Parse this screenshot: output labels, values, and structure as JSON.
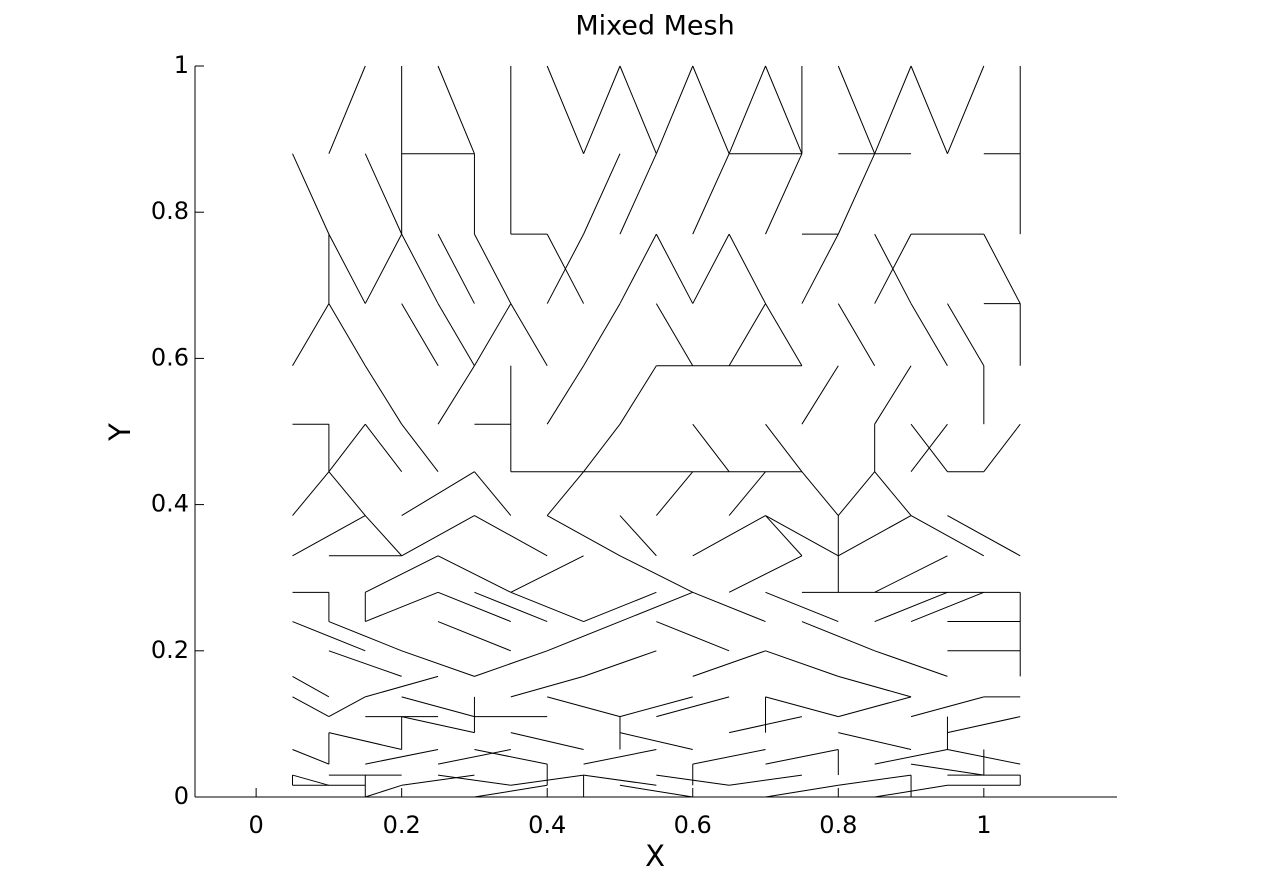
{
  "chart_data": {
    "type": "mesh",
    "title": "Mixed Mesh",
    "x_label": "X",
    "y_label": "Y",
    "color": "#000000",
    "xlim": [
      -0.084,
      1.183
    ],
    "ylim": [
      0,
      1
    ],
    "xticks": [
      0,
      0.2,
      0.4,
      0.6,
      0.8,
      1
    ],
    "yticks": [
      0,
      0.2,
      0.4,
      0.6,
      0.8,
      1
    ],
    "segments": [
      [
        0.05,
        0.016,
        0.15,
        0.016
      ],
      [
        0.1,
        0.03,
        0.2,
        0.03
      ],
      [
        0.05,
        0.03,
        0.1,
        0.016
      ],
      [
        0.15,
        0,
        0.2,
        0.016
      ],
      [
        0.2,
        0.016,
        0.3,
        0.03
      ],
      [
        0.25,
        0.03,
        0.35,
        0.016
      ],
      [
        0.35,
        0.016,
        0.45,
        0.03
      ],
      [
        0.3,
        0,
        0.4,
        0.016
      ],
      [
        0.45,
        0.03,
        0.55,
        0.016
      ],
      [
        0.5,
        0.016,
        0.6,
        0
      ],
      [
        0.55,
        0.03,
        0.65,
        0.016
      ],
      [
        0.65,
        0.016,
        0.75,
        0.03
      ],
      [
        0.7,
        0,
        0.8,
        0.016
      ],
      [
        0.8,
        0.016,
        0.9,
        0.03
      ],
      [
        0.85,
        0,
        0.95,
        0.016
      ],
      [
        0.95,
        0.016,
        1.05,
        0.016
      ],
      [
        0.95,
        0.03,
        1.05,
        0.03
      ],
      [
        0.9,
        0.045,
        1.0,
        0.03
      ],
      [
        0.05,
        0.065,
        0.1,
        0.045
      ],
      [
        0.1,
        0.088,
        0.2,
        0.065
      ],
      [
        0.15,
        0.045,
        0.25,
        0.065
      ],
      [
        0.2,
        0.11,
        0.3,
        0.088
      ],
      [
        0.25,
        0.045,
        0.35,
        0.065
      ],
      [
        0.3,
        0.065,
        0.4,
        0.045
      ],
      [
        0.35,
        0.088,
        0.45,
        0.065
      ],
      [
        0.45,
        0.045,
        0.55,
        0.065
      ],
      [
        0.5,
        0.088,
        0.6,
        0.065
      ],
      [
        0.6,
        0.045,
        0.7,
        0.065
      ],
      [
        0.65,
        0.088,
        0.75,
        0.11
      ],
      [
        0.7,
        0.045,
        0.8,
        0.065
      ],
      [
        0.8,
        0.088,
        0.9,
        0.065
      ],
      [
        0.85,
        0.045,
        0.95,
        0.065
      ],
      [
        0.95,
        0.065,
        1.05,
        0.045
      ],
      [
        0.95,
        0.088,
        1.05,
        0.11
      ],
      [
        0.05,
        0.137,
        0.1,
        0.11
      ],
      [
        0.1,
        0.11,
        0.15,
        0.137
      ],
      [
        0.15,
        0.11,
        0.25,
        0.11
      ],
      [
        0.2,
        0.137,
        0.3,
        0.11
      ],
      [
        0.3,
        0.11,
        0.4,
        0.11
      ],
      [
        0.4,
        0.137,
        0.5,
        0.11
      ],
      [
        0.5,
        0.11,
        0.6,
        0.137
      ],
      [
        0.55,
        0.11,
        0.65,
        0.137
      ],
      [
        0.7,
        0.137,
        0.8,
        0.11
      ],
      [
        0.8,
        0.11,
        0.9,
        0.137
      ],
      [
        0.9,
        0.11,
        1.0,
        0.137
      ],
      [
        1.0,
        0.137,
        1.05,
        0.137
      ],
      [
        0.05,
        0.016,
        0.05,
        0.03
      ],
      [
        0.1,
        0.045,
        0.1,
        0.088
      ],
      [
        0.15,
        0,
        0.15,
        0.03
      ],
      [
        0.2,
        0.065,
        0.2,
        0.11
      ],
      [
        0.3,
        0.088,
        0.3,
        0.137
      ],
      [
        0.4,
        0.016,
        0.4,
        0.045
      ],
      [
        0.45,
        0,
        0.45,
        0.03
      ],
      [
        0.5,
        0.065,
        0.5,
        0.11
      ],
      [
        0.6,
        0.016,
        0.6,
        0.045
      ],
      [
        0.7,
        0.088,
        0.7,
        0.137
      ],
      [
        0.8,
        0.03,
        0.8,
        0.065
      ],
      [
        0.9,
        0,
        0.9,
        0.03
      ],
      [
        0.95,
        0.065,
        0.95,
        0.11
      ],
      [
        1.0,
        0.03,
        1.0,
        0.065
      ],
      [
        1.05,
        0.016,
        1.05,
        0.03
      ],
      [
        0.05,
        0.165,
        0.1,
        0.137
      ],
      [
        0.1,
        0.2,
        0.2,
        0.165
      ],
      [
        0.15,
        0.137,
        0.25,
        0.165
      ],
      [
        0.2,
        0.2,
        0.3,
        0.165
      ],
      [
        0.25,
        0.24,
        0.35,
        0.2
      ],
      [
        0.3,
        0.165,
        0.4,
        0.2
      ],
      [
        0.35,
        0.137,
        0.45,
        0.165
      ],
      [
        0.4,
        0.2,
        0.5,
        0.24
      ],
      [
        0.45,
        0.165,
        0.55,
        0.2
      ],
      [
        0.55,
        0.24,
        0.65,
        0.2
      ],
      [
        0.6,
        0.165,
        0.7,
        0.2
      ],
      [
        0.7,
        0.2,
        0.8,
        0.165
      ],
      [
        0.75,
        0.24,
        0.85,
        0.2
      ],
      [
        0.8,
        0.165,
        0.9,
        0.137
      ],
      [
        0.85,
        0.2,
        0.95,
        0.165
      ],
      [
        0.95,
        0.2,
        1.05,
        0.2
      ],
      [
        0.95,
        0.24,
        1.05,
        0.24
      ],
      [
        0.05,
        0.24,
        0.15,
        0.2
      ],
      [
        0.05,
        0.28,
        0.1,
        0.28
      ],
      [
        0.1,
        0.28,
        0.1,
        0.24
      ],
      [
        0.1,
        0.24,
        0.2,
        0.2
      ],
      [
        0.15,
        0.24,
        0.25,
        0.28
      ],
      [
        0.15,
        0.24,
        0.15,
        0.28
      ],
      [
        0.25,
        0.28,
        0.35,
        0.24
      ],
      [
        0.3,
        0.28,
        0.4,
        0.24
      ],
      [
        0.35,
        0.28,
        0.45,
        0.24
      ],
      [
        0.45,
        0.24,
        0.55,
        0.28
      ],
      [
        0.5,
        0.24,
        0.6,
        0.28
      ],
      [
        0.6,
        0.28,
        0.7,
        0.24
      ],
      [
        0.7,
        0.28,
        0.8,
        0.24
      ],
      [
        0.75,
        0.28,
        1.05,
        0.28
      ],
      [
        0.85,
        0.24,
        0.95,
        0.28
      ],
      [
        0.9,
        0.24,
        1.0,
        0.28
      ],
      [
        1.05,
        0.28,
        1.05,
        0.165
      ],
      [
        0.05,
        0.33,
        0.15,
        0.385
      ],
      [
        0.1,
        0.33,
        0.2,
        0.33
      ],
      [
        0.15,
        0.28,
        0.25,
        0.33
      ],
      [
        0.2,
        0.33,
        0.3,
        0.385
      ],
      [
        0.25,
        0.33,
        0.35,
        0.28
      ],
      [
        0.3,
        0.385,
        0.4,
        0.33
      ],
      [
        0.35,
        0.28,
        0.45,
        0.33
      ],
      [
        0.4,
        0.385,
        0.5,
        0.33
      ],
      [
        0.5,
        0.33,
        0.6,
        0.28
      ],
      [
        0.6,
        0.33,
        0.7,
        0.385
      ],
      [
        0.65,
        0.28,
        0.75,
        0.33
      ],
      [
        0.7,
        0.385,
        0.8,
        0.33
      ],
      [
        0.8,
        0.28,
        0.8,
        0.385
      ],
      [
        0.8,
        0.33,
        0.9,
        0.385
      ],
      [
        0.85,
        0.28,
        0.95,
        0.33
      ],
      [
        0.9,
        0.385,
        1.0,
        0.33
      ],
      [
        0.95,
        0.385,
        1.05,
        0.33
      ],
      [
        0.05,
        0.385,
        0.1,
        0.445
      ],
      [
        0.1,
        0.445,
        0.15,
        0.385
      ],
      [
        0.15,
        0.385,
        0.2,
        0.33
      ],
      [
        0.2,
        0.385,
        0.3,
        0.445
      ],
      [
        0.3,
        0.445,
        0.35,
        0.385
      ],
      [
        0.35,
        0.445,
        0.75,
        0.445
      ],
      [
        0.4,
        0.385,
        0.45,
        0.445
      ],
      [
        0.5,
        0.385,
        0.55,
        0.33
      ],
      [
        0.55,
        0.385,
        0.6,
        0.445
      ],
      [
        0.65,
        0.385,
        0.7,
        0.445
      ],
      [
        0.7,
        0.385,
        0.75,
        0.33
      ],
      [
        0.75,
        0.445,
        0.8,
        0.385
      ],
      [
        0.8,
        0.385,
        0.85,
        0.445
      ],
      [
        0.85,
        0.445,
        0.9,
        0.385
      ],
      [
        0.9,
        0.445,
        0.95,
        0.51
      ],
      [
        1.0,
        0.445,
        1.05,
        0.51
      ],
      [
        0.05,
        0.51,
        0.1,
        0.51
      ],
      [
        0.1,
        0.445,
        0.1,
        0.51
      ],
      [
        0.1,
        0.445,
        0.15,
        0.51
      ],
      [
        0.15,
        0.51,
        0.2,
        0.445
      ],
      [
        0.2,
        0.51,
        0.25,
        0.445
      ],
      [
        0.25,
        0.51,
        0.3,
        0.59
      ],
      [
        0.3,
        0.51,
        0.35,
        0.51
      ],
      [
        0.35,
        0.59,
        0.35,
        0.445
      ],
      [
        0.4,
        0.51,
        0.45,
        0.59
      ],
      [
        0.45,
        0.445,
        0.5,
        0.51
      ],
      [
        0.5,
        0.51,
        0.55,
        0.59
      ],
      [
        0.55,
        0.59,
        0.75,
        0.59
      ],
      [
        0.6,
        0.51,
        0.65,
        0.445
      ],
      [
        0.7,
        0.51,
        0.75,
        0.445
      ],
      [
        0.75,
        0.51,
        0.8,
        0.59
      ],
      [
        0.85,
        0.445,
        0.85,
        0.51
      ],
      [
        0.85,
        0.51,
        0.9,
        0.59
      ],
      [
        0.9,
        0.51,
        0.95,
        0.445
      ],
      [
        0.95,
        0.445,
        1.0,
        0.445
      ],
      [
        1.0,
        0.51,
        1.0,
        0.59
      ],
      [
        0.05,
        0.59,
        0.1,
        0.675
      ],
      [
        0.1,
        0.675,
        0.15,
        0.59
      ],
      [
        0.15,
        0.59,
        0.2,
        0.51
      ],
      [
        0.2,
        0.675,
        0.25,
        0.59
      ],
      [
        0.25,
        0.675,
        0.3,
        0.59
      ],
      [
        0.3,
        0.59,
        0.35,
        0.675
      ],
      [
        0.35,
        0.675,
        0.4,
        0.59
      ],
      [
        0.4,
        0.675,
        0.45,
        0.77
      ],
      [
        0.45,
        0.59,
        0.5,
        0.675
      ],
      [
        0.5,
        0.675,
        0.55,
        0.77
      ],
      [
        0.55,
        0.675,
        0.6,
        0.59
      ],
      [
        0.6,
        0.675,
        0.65,
        0.77
      ],
      [
        0.65,
        0.59,
        0.7,
        0.675
      ],
      [
        0.7,
        0.675,
        0.75,
        0.59
      ],
      [
        0.75,
        0.675,
        0.8,
        0.77
      ],
      [
        0.8,
        0.675,
        0.85,
        0.59
      ],
      [
        0.85,
        0.675,
        0.9,
        0.77
      ],
      [
        0.9,
        0.675,
        0.95,
        0.59
      ],
      [
        0.95,
        0.675,
        1.0,
        0.59
      ],
      [
        1.0,
        0.675,
        1.05,
        0.675
      ],
      [
        1.05,
        0.59,
        1.05,
        0.675
      ],
      [
        0.1,
        0.77,
        0.15,
        0.675
      ],
      [
        0.15,
        0.675,
        0.2,
        0.77
      ],
      [
        0.2,
        0.77,
        0.25,
        0.675
      ],
      [
        0.25,
        0.77,
        0.3,
        0.675
      ],
      [
        0.3,
        0.77,
        0.35,
        0.675
      ],
      [
        0.35,
        0.77,
        0.4,
        0.77
      ],
      [
        0.4,
        0.77,
        0.45,
        0.675
      ],
      [
        0.45,
        0.77,
        0.5,
        0.88
      ],
      [
        0.5,
        0.77,
        0.55,
        0.88
      ],
      [
        0.55,
        0.77,
        0.6,
        0.675
      ],
      [
        0.6,
        0.77,
        0.65,
        0.88
      ],
      [
        0.65,
        0.77,
        0.7,
        0.675
      ],
      [
        0.7,
        0.77,
        0.75,
        0.88
      ],
      [
        0.75,
        0.77,
        0.8,
        0.77
      ],
      [
        0.8,
        0.77,
        0.85,
        0.88
      ],
      [
        0.85,
        0.77,
        0.9,
        0.675
      ],
      [
        0.9,
        0.77,
        1.0,
        0.77
      ],
      [
        1.0,
        0.77,
        1.05,
        0.675
      ],
      [
        0.1,
        0.88,
        0.15,
        1
      ],
      [
        0.15,
        0.88,
        0.2,
        0.77
      ],
      [
        0.2,
        1,
        0.2,
        0.77
      ],
      [
        0.2,
        0.88,
        0.3,
        0.88
      ],
      [
        0.25,
        1,
        0.3,
        0.88
      ],
      [
        0.3,
        0.77,
        0.3,
        0.88
      ],
      [
        0.35,
        1,
        0.35,
        0.77
      ],
      [
        0.4,
        1,
        0.45,
        0.88
      ],
      [
        0.45,
        0.88,
        0.5,
        1
      ],
      [
        0.5,
        1,
        0.55,
        0.88
      ],
      [
        0.55,
        0.88,
        0.6,
        1
      ],
      [
        0.6,
        1,
        0.65,
        0.88
      ],
      [
        0.65,
        0.88,
        0.7,
        1
      ],
      [
        0.7,
        1,
        0.75,
        0.88
      ],
      [
        0.75,
        1,
        0.75,
        0.88
      ],
      [
        0.8,
        1,
        0.85,
        0.88
      ],
      [
        0.85,
        0.88,
        0.9,
        1
      ],
      [
        0.9,
        1,
        0.95,
        0.88
      ],
      [
        0.95,
        0.88,
        1.0,
        1
      ],
      [
        1.0,
        0.88,
        1.05,
        0.88
      ],
      [
        1.05,
        1,
        1.05,
        0.77
      ],
      [
        0.05,
        0.88,
        0.1,
        0.77
      ],
      [
        0.1,
        0.77,
        0.1,
        0.675
      ],
      [
        0.65,
        0.88,
        0.75,
        0.88
      ],
      [
        0.8,
        0.88,
        0.9,
        0.88
      ]
    ]
  }
}
